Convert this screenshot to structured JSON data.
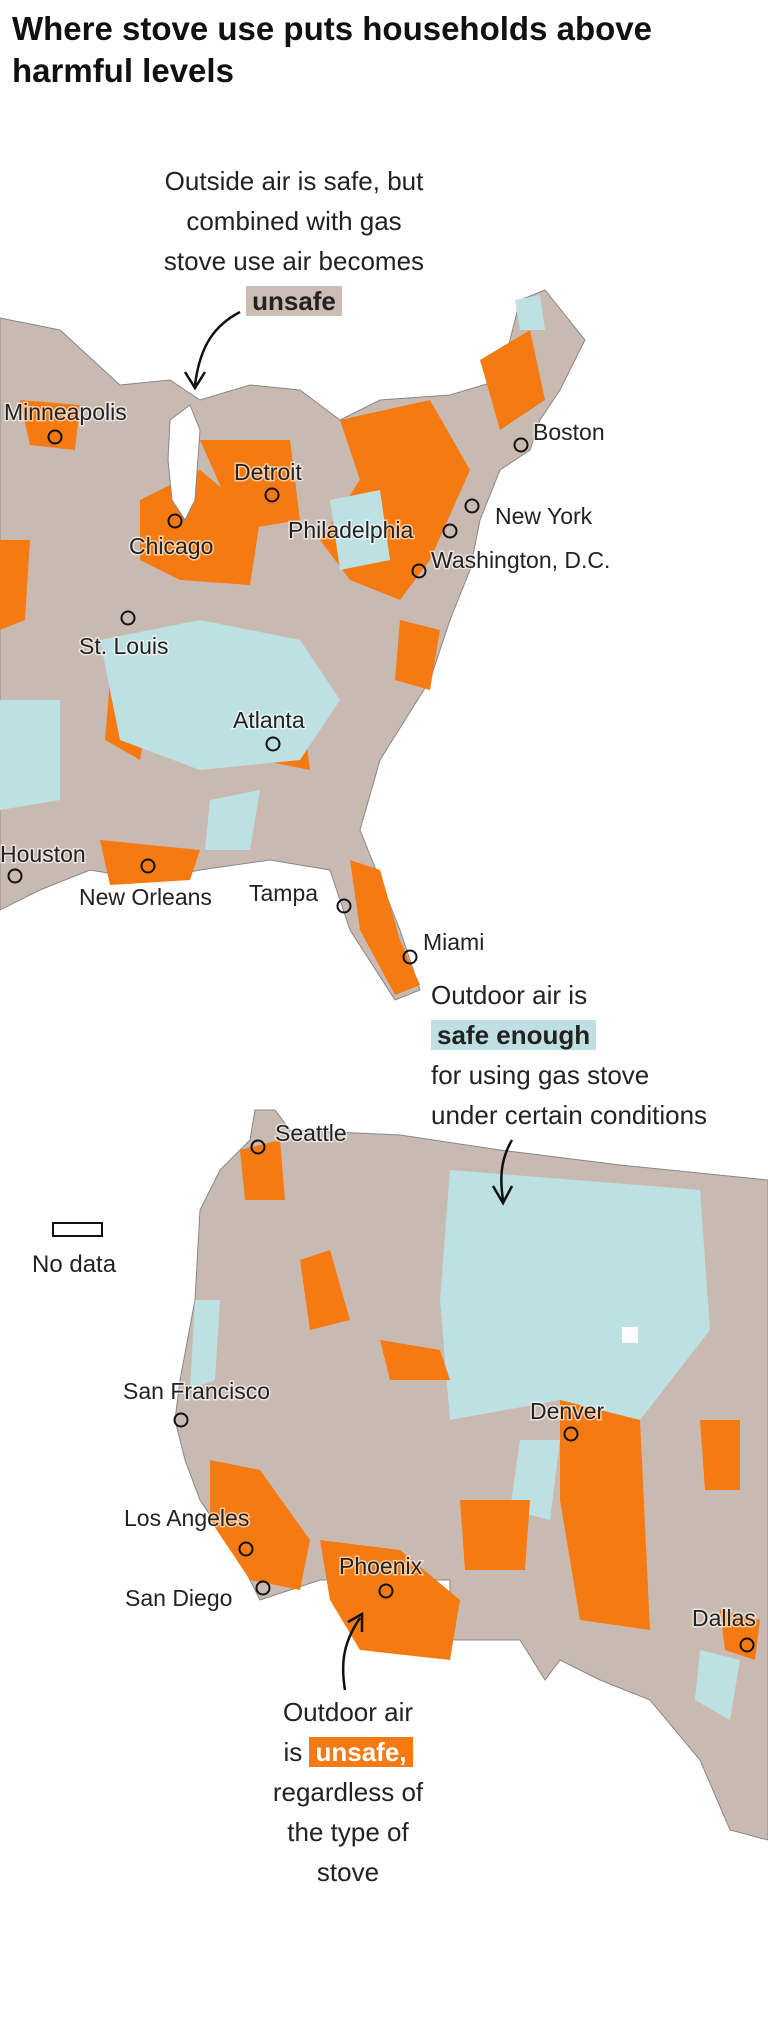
{
  "title": "Where stove use puts households above harmful levels",
  "annotations": [
    {
      "lines": [
        "Outside air is safe, but",
        "combined with gas",
        "stove use air becomes"
      ],
      "highlight": "unsafe"
    },
    {
      "lines": [
        "Outdoor air is"
      ],
      "highlight": "safe enough",
      "after": [
        "for using gas stove",
        "under certain conditions"
      ]
    },
    {
      "lines": [
        "Outdoor air"
      ],
      "before": "is",
      "highlight": "unsafe,",
      "after": [
        "regardless of",
        "the type of",
        "stove"
      ]
    }
  ],
  "legend": {
    "label": "No data"
  },
  "cities": [
    "Minneapolis",
    "Detroit",
    "Chicago",
    "Boston",
    "New York",
    "Philadelphia",
    "Washington, D.C.",
    "St. Louis",
    "Atlanta",
    "Houston",
    "New Orleans",
    "Tampa",
    "Miami",
    "Seattle",
    "San Francisco",
    "Denver",
    "Los Angeles",
    "Phoenix",
    "San Diego",
    "Dallas"
  ]
}
